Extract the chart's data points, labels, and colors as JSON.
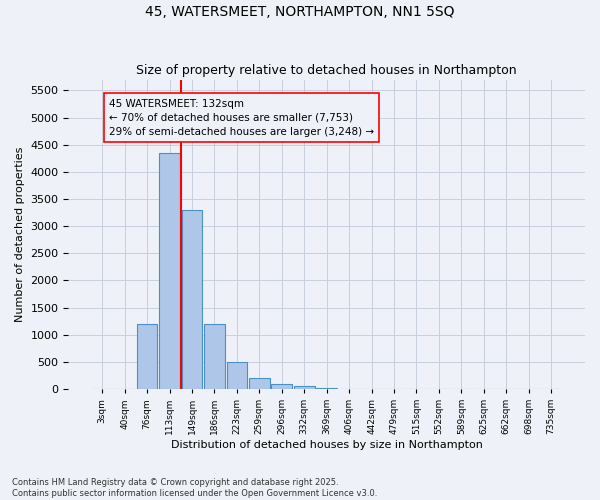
{
  "title": "45, WATERSMEET, NORTHAMPTON, NN1 5SQ",
  "subtitle": "Size of property relative to detached houses in Northampton",
  "xlabel": "Distribution of detached houses by size in Northampton",
  "ylabel": "Number of detached properties",
  "bar_color": "#aec6e8",
  "bar_edge_color": "#4a90c4",
  "bin_labels": [
    "3sqm",
    "40sqm",
    "76sqm",
    "113sqm",
    "149sqm",
    "186sqm",
    "223sqm",
    "259sqm",
    "296sqm",
    "332sqm",
    "369sqm",
    "406sqm",
    "442sqm",
    "479sqm",
    "515sqm",
    "552sqm",
    "589sqm",
    "625sqm",
    "662sqm",
    "698sqm",
    "735sqm"
  ],
  "bar_values": [
    0,
    0,
    1200,
    4350,
    3300,
    1200,
    490,
    200,
    100,
    50,
    10,
    0,
    0,
    0,
    0,
    0,
    0,
    0,
    0,
    0,
    0
  ],
  "ylim": [
    0,
    5700
  ],
  "yticks": [
    0,
    500,
    1000,
    1500,
    2000,
    2500,
    3000,
    3500,
    4000,
    4500,
    5000,
    5500
  ],
  "property_size": 132,
  "annotation_text": "45 WATERSMEET: 132sqm\n← 70% of detached houses are smaller (7,753)\n29% of semi-detached houses are larger (3,248) →",
  "footer_line1": "Contains HM Land Registry data © Crown copyright and database right 2025.",
  "footer_line2": "Contains public sector information licensed under the Open Government Licence v3.0.",
  "background_color": "#eef2f8",
  "grid_color": "#c8d0de"
}
